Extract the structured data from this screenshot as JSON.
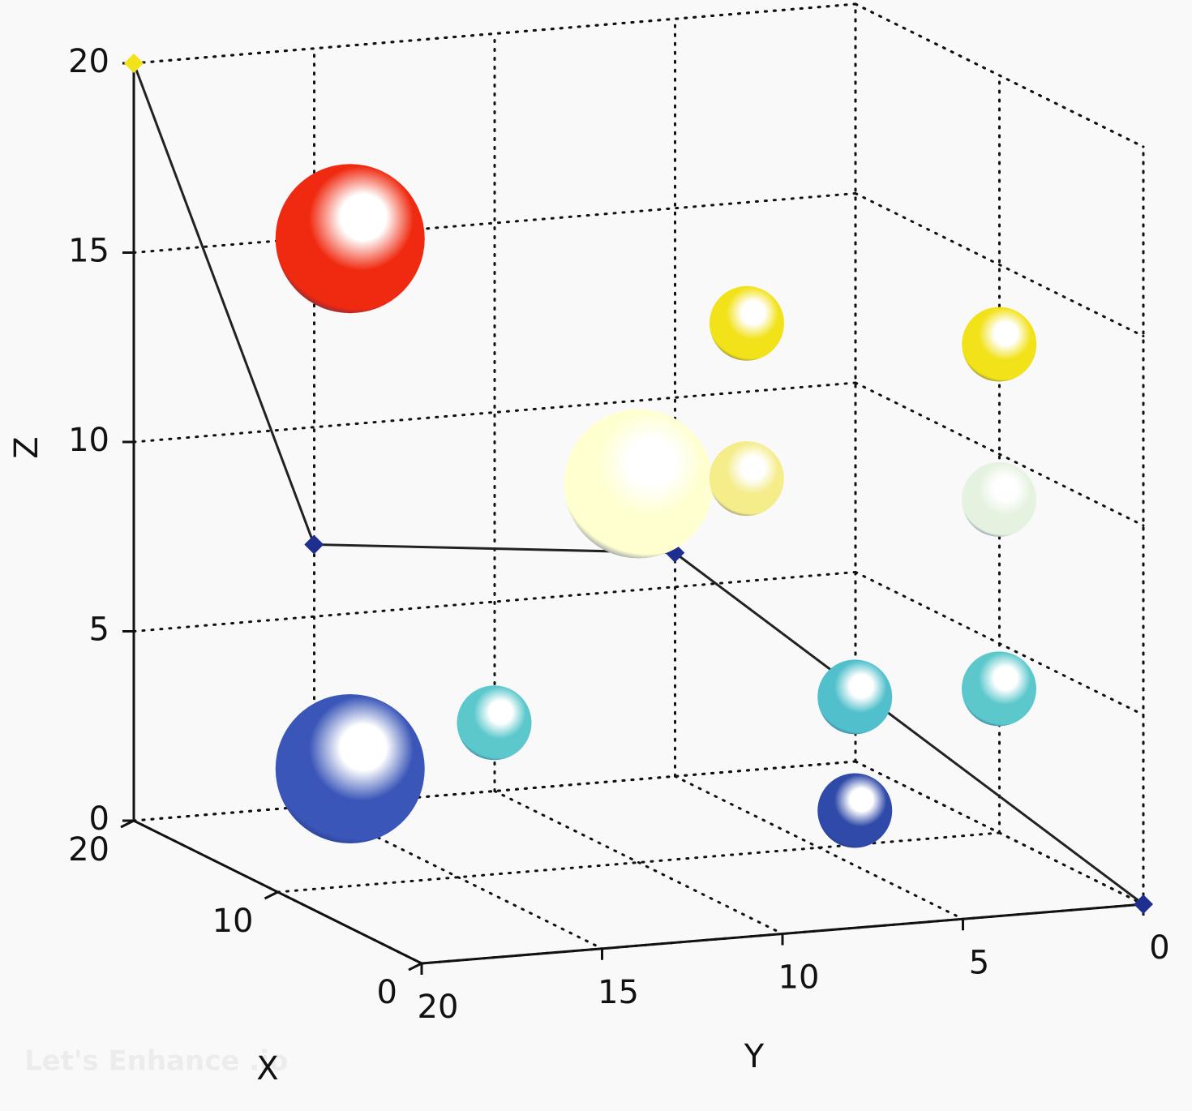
{
  "chart_data": {
    "type": "scatter3d",
    "x_label": "X",
    "y_label": "Y",
    "z_label": "Z",
    "x": [
      15,
      10,
      5,
      10,
      5,
      0,
      15,
      10,
      5,
      0,
      5
    ],
    "y": [
      16,
      7,
      2,
      10,
      9,
      4,
      16,
      14,
      6,
      4,
      6
    ],
    "z": [
      16,
      14,
      14,
      10,
      11,
      11,
      2,
      4,
      5,
      6,
      2
    ],
    "sizes": [
      2,
      1,
      1,
      2,
      1,
      1,
      2,
      1,
      1,
      1,
      1
    ],
    "colors": [
      "#f02a10",
      "#f2e21a",
      "#f2e21a",
      "#ffffd0",
      "#f5ec8a",
      "#e6f2e0",
      "#3a56b8",
      "#5cc8cc",
      "#52c0cc",
      "#5cc8cc",
      "#2f4aa8"
    ],
    "path": {
      "x": [
        20,
        15,
        15,
        0
      ],
      "y": [
        20,
        17,
        7,
        0
      ],
      "z": [
        20,
        8,
        7,
        0
      ],
      "color": "#1f2f8f"
    },
    "xlim": [
      0,
      20
    ],
    "ylim": [
      0,
      20
    ],
    "zlim": [
      0,
      20
    ],
    "xticks": [
      0,
      10,
      20
    ],
    "yticks": [
      0,
      5,
      10,
      15,
      20
    ],
    "zticks": [
      0,
      5,
      10,
      15,
      20
    ],
    "grid": true,
    "watermark": "Let's Enhance .io"
  }
}
